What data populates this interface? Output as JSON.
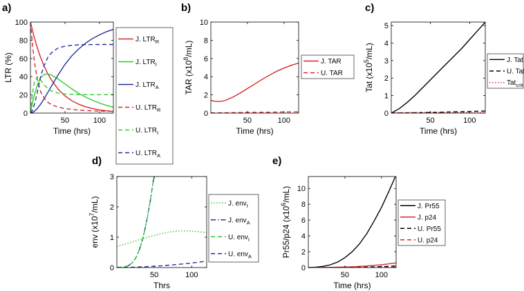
{
  "chart_data": [
    {
      "panel": "a)",
      "type": "line",
      "xlabel": "Time (hrs)",
      "ylabel": "LTR (%)",
      "xlim": [
        0,
        120
      ],
      "ylim": [
        0,
        100
      ],
      "xticks": [
        50,
        100
      ],
      "yticks": [
        0,
        20,
        40,
        60,
        80,
        100
      ],
      "series": [
        {
          "name": "J. LTR",
          "sub": "R",
          "color": "#d62728",
          "style": "solid",
          "x": [
            0,
            5,
            10,
            15,
            20,
            25,
            30,
            40,
            50,
            60,
            70,
            80,
            90,
            100,
            110,
            120
          ],
          "y": [
            100,
            84.6,
            71.6,
            60.6,
            51.3,
            43.4,
            36.8,
            26.3,
            18.9,
            13.5,
            9.7,
            6.9,
            5.0,
            3.5,
            2.5,
            1.8
          ]
        },
        {
          "name": "J. LTR",
          "sub": "I",
          "color": "#2ecc2e",
          "style": "solid",
          "x": [
            0,
            5,
            10,
            15,
            20,
            25,
            30,
            40,
            50,
            60,
            70,
            80,
            90,
            100,
            110,
            120
          ],
          "y": [
            0,
            18,
            31,
            39,
            42.5,
            43,
            42,
            37.5,
            32,
            26.5,
            21.5,
            17.5,
            14,
            11,
            8.5,
            6.5
          ]
        },
        {
          "name": "J. LTR",
          "sub": "A",
          "color": "#1f2f9e",
          "style": "solid",
          "x": [
            0,
            5,
            10,
            15,
            20,
            25,
            30,
            40,
            50,
            60,
            70,
            80,
            90,
            100,
            110,
            120
          ],
          "y": [
            0,
            1.5,
            5,
            10,
            16,
            22.5,
            29,
            42,
            53.5,
            63,
            70.5,
            77,
            82,
            86,
            89.5,
            92
          ]
        },
        {
          "name": "U. LTR",
          "sub": "R",
          "color": "#d62728",
          "style": "dashed",
          "x": [
            0,
            3,
            6,
            10,
            15,
            20,
            25,
            30,
            40,
            50,
            60,
            70,
            80,
            90,
            100,
            110,
            120
          ],
          "y": [
            100,
            75,
            55,
            37,
            23,
            16.5,
            12,
            9.5,
            6.5,
            5,
            4,
            3.3,
            2.8,
            2.5,
            2.2,
            2,
            1.9
          ]
        },
        {
          "name": "U. LTR",
          "sub": "I",
          "color": "#2ecc2e",
          "style": "dashed",
          "x": [
            0,
            3,
            6,
            10,
            15,
            20,
            25,
            30,
            40,
            50,
            60,
            70,
            80,
            90,
            100,
            110,
            120
          ],
          "y": [
            0,
            22,
            35,
            40,
            36,
            31,
            27,
            24.5,
            22,
            21,
            20.6,
            20.4,
            20.3,
            20.2,
            20.2,
            20.2,
            20.2
          ]
        },
        {
          "name": "U. LTR",
          "sub": "A",
          "color": "#1f2f9e",
          "style": "dashed",
          "x": [
            0,
            3,
            6,
            10,
            15,
            20,
            25,
            30,
            40,
            50,
            60,
            70,
            80,
            90,
            100,
            110,
            120
          ],
          "y": [
            0,
            3,
            10,
            23,
            41,
            52.5,
            61,
            66,
            71.5,
            73.5,
            74.5,
            75,
            75.2,
            75.3,
            75.4,
            75.4,
            75.4
          ]
        }
      ]
    },
    {
      "panel": "b)",
      "type": "line",
      "xlabel": "Time (hrs)",
      "ylabel": "TAR (x10",
      "ylabel_exp": "8",
      "ylabel_unit": "/mL)",
      "xlim": [
        0,
        120
      ],
      "ylim": [
        0,
        10
      ],
      "xticks": [
        50,
        100
      ],
      "yticks": [
        0,
        2,
        4,
        6,
        8,
        10
      ],
      "series": [
        {
          "name": "J. TAR",
          "sub": "",
          "color": "#d62728",
          "style": "solid",
          "x": [
            0,
            5,
            10,
            15,
            20,
            30,
            40,
            50,
            60,
            70,
            80,
            90,
            100,
            110,
            120
          ],
          "y": [
            1.4,
            1.3,
            1.27,
            1.3,
            1.4,
            1.75,
            2.2,
            2.7,
            3.2,
            3.7,
            4.15,
            4.6,
            4.95,
            5.25,
            5.5
          ]
        },
        {
          "name": "U. TAR",
          "sub": "",
          "color": "#d62728",
          "style": "dashed",
          "x": [
            0,
            20,
            40,
            60,
            80,
            100,
            120
          ],
          "y": [
            0.02,
            0.04,
            0.06,
            0.08,
            0.1,
            0.12,
            0.14
          ]
        }
      ]
    },
    {
      "panel": "c)",
      "type": "line",
      "xlabel": "Time (hrs)",
      "ylabel": "Tat (x10",
      "ylabel_exp": "5",
      "ylabel_unit": "/mL)",
      "xlim": [
        0,
        120
      ],
      "ylim": [
        0,
        5.2
      ],
      "xticks": [
        50,
        100
      ],
      "yticks": [
        0,
        1,
        2,
        3,
        4,
        5
      ],
      "series": [
        {
          "name": "J. Tat",
          "sub": "",
          "color": "#000000",
          "style": "solid",
          "x": [
            0,
            10,
            20,
            30,
            40,
            50,
            60,
            70,
            80,
            90,
            100,
            110,
            120
          ],
          "y": [
            0,
            0.25,
            0.6,
            1.0,
            1.45,
            1.9,
            2.35,
            2.8,
            3.25,
            3.7,
            4.2,
            4.7,
            5.2
          ]
        },
        {
          "name": "U. Tat",
          "sub": "",
          "color": "#000000",
          "style": "dashed",
          "x": [
            0,
            30,
            60,
            90,
            120
          ],
          "y": [
            0,
            0.02,
            0.05,
            0.08,
            0.12
          ]
        },
        {
          "name": "Tat",
          "sub": "crit",
          "color": "#d62728",
          "style": "dotted",
          "x": [
            0,
            120
          ],
          "y": [
            0.03,
            0.03
          ]
        }
      ]
    },
    {
      "panel": "d)",
      "type": "line",
      "xlabel": "Thrs",
      "ylabel": "env (x10",
      "ylabel_exp": "7",
      "ylabel_unit": "/mL)",
      "xlim": [
        0,
        120
      ],
      "ylim": [
        0,
        3
      ],
      "xticks": [
        50,
        100
      ],
      "yticks": [
        0,
        1,
        2,
        3
      ],
      "series": [
        {
          "name": "J. env",
          "sub": "I",
          "color": "#2ecc2e",
          "style": "dotted",
          "x": [
            0,
            10,
            20,
            30,
            40,
            50,
            60,
            70,
            80,
            90,
            100,
            110,
            120
          ],
          "y": [
            0.7,
            0.76,
            0.84,
            0.92,
            0.99,
            1.06,
            1.12,
            1.17,
            1.2,
            1.21,
            1.2,
            1.18,
            1.15
          ]
        },
        {
          "name": "J. env",
          "sub": "A",
          "color": "#1f2f9e",
          "style": "dashdot",
          "x": [
            0,
            10,
            15,
            20,
            25,
            30,
            35,
            40,
            45,
            48,
            50
          ],
          "y": [
            0,
            0.02,
            0.06,
            0.14,
            0.3,
            0.58,
            0.98,
            1.55,
            2.25,
            2.75,
            3.05
          ]
        },
        {
          "name": "U. env",
          "sub": "I",
          "color": "#2ecc2e",
          "style": "dashed",
          "x": [
            0,
            10,
            15,
            20,
            25,
            30,
            35,
            40,
            45,
            48,
            50
          ],
          "y": [
            0,
            0.02,
            0.06,
            0.14,
            0.3,
            0.58,
            0.98,
            1.55,
            2.25,
            2.75,
            3.05
          ]
        },
        {
          "name": "U. env",
          "sub": "A",
          "color": "#1f2f9e",
          "style": "dashed",
          "x": [
            0,
            20,
            40,
            60,
            80,
            100,
            120
          ],
          "y": [
            0,
            0.01,
            0.03,
            0.06,
            0.1,
            0.15,
            0.21
          ]
        }
      ]
    },
    {
      "panel": "e)",
      "type": "line",
      "xlabel": "Time (hrs)",
      "ylabel": "Pr55/p24 (x10",
      "ylabel_exp": "6",
      "ylabel_unit": "/mL)",
      "xlim": [
        0,
        120
      ],
      "ylim": [
        0,
        11.5
      ],
      "xticks": [
        50,
        100
      ],
      "yticks": [
        0,
        2,
        4,
        6,
        8,
        10
      ],
      "series": [
        {
          "name": "J. Pr55",
          "sub": "",
          "color": "#000000",
          "style": "solid",
          "x": [
            0,
            10,
            20,
            30,
            40,
            50,
            60,
            70,
            80,
            90,
            100,
            110,
            120
          ],
          "y": [
            0,
            0.04,
            0.15,
            0.35,
            0.7,
            1.25,
            2.0,
            3.0,
            4.3,
            5.9,
            7.6,
            9.6,
            11.7
          ]
        },
        {
          "name": "J. p24",
          "sub": "",
          "color": "#d62728",
          "style": "solid",
          "x": [
            0,
            20,
            40,
            60,
            80,
            100,
            120
          ],
          "y": [
            0,
            0.01,
            0.04,
            0.1,
            0.2,
            0.36,
            0.58
          ]
        },
        {
          "name": "U. Pr55",
          "sub": "",
          "color": "#000000",
          "style": "dashed",
          "x": [
            0,
            40,
            60,
            80,
            100,
            120
          ],
          "y": [
            0,
            0.01,
            0.03,
            0.06,
            0.12,
            0.2
          ]
        },
        {
          "name": "U. p24",
          "sub": "",
          "color": "#d62728",
          "style": "dashed",
          "x": [
            0,
            60,
            80,
            100,
            120
          ],
          "y": [
            0,
            0.005,
            0.01,
            0.02,
            0.04
          ]
        }
      ]
    }
  ]
}
